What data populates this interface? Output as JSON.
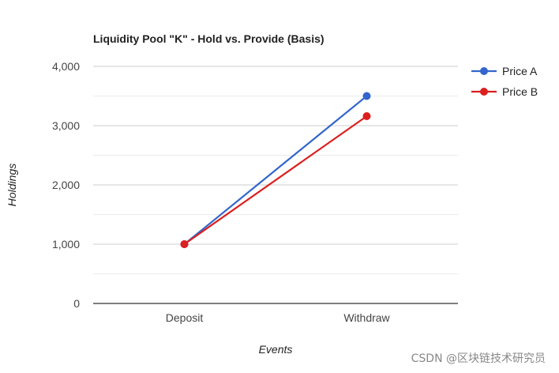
{
  "chart_data": {
    "type": "line",
    "title": "Liquidity Pool \"K\" - Hold vs. Provide (Basis)",
    "xlabel": "Events",
    "ylabel": "Holdings",
    "categories": [
      "Deposit",
      "Withdraw"
    ],
    "ylim": [
      0,
      4000
    ],
    "yticks": [
      0,
      1000,
      2000,
      3000,
      4000
    ],
    "ytick_labels": [
      "0",
      "1,000",
      "2,000",
      "3,000",
      "4,000"
    ],
    "grid": true,
    "legend_position": "right",
    "series": [
      {
        "name": "Price A",
        "values": [
          1000,
          3500
        ],
        "color": "#3366cc"
      },
      {
        "name": "Price B",
        "values": [
          1000,
          3160
        ],
        "color": "#dc1f1f"
      }
    ]
  },
  "watermark": "CSDN @区块链技术研究员"
}
